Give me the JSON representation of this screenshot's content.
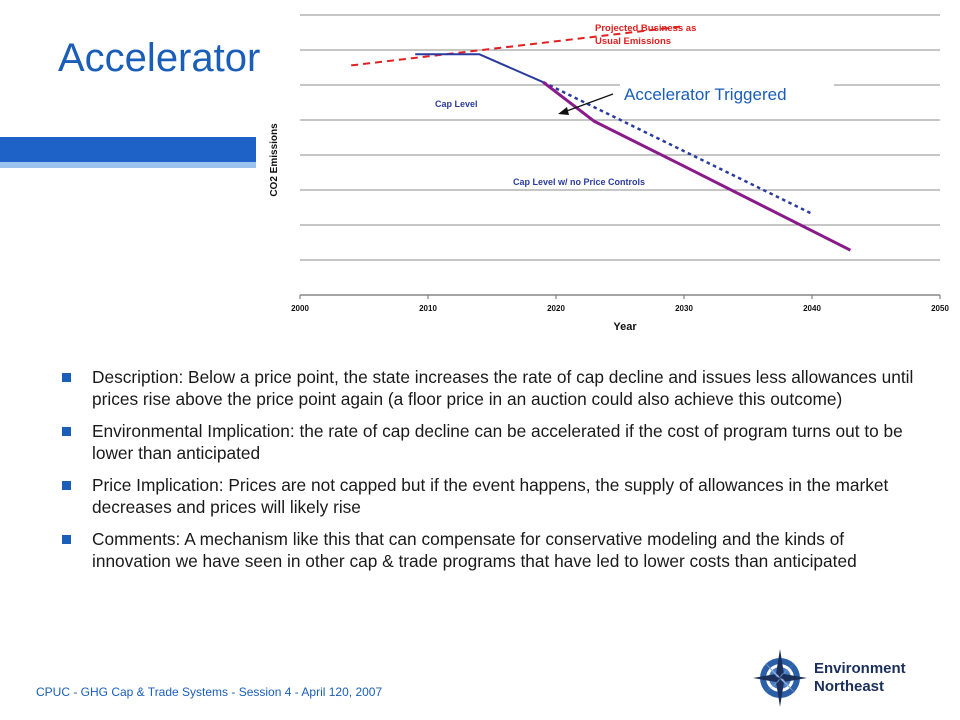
{
  "slide": {
    "title": "Accelerator",
    "footer": "CPUC - GHG Cap & Trade Systems - Session 4 - April 120, 2007"
  },
  "logo": {
    "line1": "Environment",
    "line2": "Northeast",
    "icon": "compass-rose-icon"
  },
  "chart_data": {
    "type": "line",
    "title": "",
    "xlabel": "Year",
    "ylabel": "CO2 Emissions",
    "xlim": [
      2000,
      2050
    ],
    "x_ticks": [
      "2000",
      "2010",
      "2020",
      "2030",
      "2040",
      "2050"
    ],
    "grid": true,
    "series": [
      {
        "name": "Projected Business as Usual Emissions",
        "style": "dashed",
        "color": "#e02020",
        "points": [
          [
            2004,
            0.82
          ],
          [
            2030,
            0.96
          ]
        ]
      },
      {
        "name": "Cap Level",
        "style": "solid",
        "color": "#2a3ba0",
        "points": [
          [
            2009,
            0.86
          ],
          [
            2014,
            0.86
          ],
          [
            2017,
            0.8
          ],
          [
            2019,
            0.76
          ]
        ]
      },
      {
        "name": "Cap Level w/ no Price Controls",
        "style": "dotted",
        "color": "#2a3ba0",
        "points": [
          [
            2019,
            0.76
          ],
          [
            2040,
            0.29
          ]
        ]
      },
      {
        "name": "",
        "style": "solid",
        "color": "#8a1a8a",
        "points": [
          [
            2019,
            0.76
          ],
          [
            2023,
            0.62
          ],
          [
            2030,
            0.46
          ],
          [
            2043,
            0.16
          ]
        ]
      }
    ],
    "annotations": [
      {
        "text": "Projected Business as",
        "color": "#e02020"
      },
      {
        "text": "Usual Emissions",
        "color": "#e02020"
      },
      {
        "text": "Cap Level",
        "color": "#2a3ba0"
      },
      {
        "text": "Cap Level w/ no Price Controls",
        "color": "#2a3ba0"
      },
      {
        "text": "Accelerator Triggered",
        "color": "#1a5eb8"
      }
    ]
  },
  "bullets": [
    "Description: Below a price point, the state increases the rate of cap decline and issues less allowances until prices rise above the price point again (a floor price in an auction could also achieve this outcome)",
    "Environmental Implication: the rate of cap decline can be accelerated if the cost of program turns out to be lower than anticipated",
    "Price Implication: Prices are not capped but if the event happens, the supply of allowances in the market decreases and prices will likely rise",
    "Comments: A mechanism like this that can compensate for conservative modeling and the kinds of innovation we have seen in other cap & trade programs that have led to lower costs than anticipated"
  ]
}
